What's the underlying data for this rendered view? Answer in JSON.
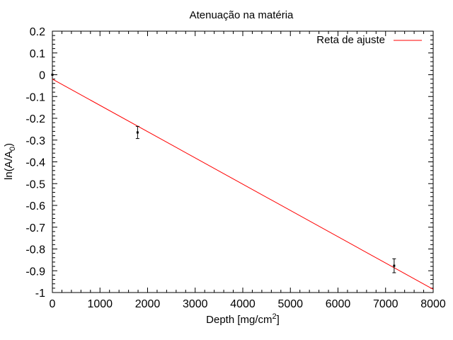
{
  "chart_data": {
    "type": "scatter",
    "title": "Atenuação na matéria",
    "xlabel": "Depth [mg/cm",
    "xlabel_sup": "2",
    "xlabel_end": "]",
    "ylabel": "ln(A/A",
    "ylabel_sub": "0",
    "ylabel_end": ")",
    "xlim": [
      0,
      8000
    ],
    "ylim": [
      -1,
      0.2
    ],
    "x_ticks": [
      0,
      1000,
      2000,
      3000,
      4000,
      5000,
      6000,
      7000,
      8000
    ],
    "x_tick_labels": [
      "0",
      "1000",
      "2000",
      "3000",
      "4000",
      "5000",
      "6000",
      "7000",
      "8000"
    ],
    "y_ticks": [
      -1,
      -0.9,
      -0.8,
      -0.7,
      -0.6,
      -0.5,
      -0.4,
      -0.3,
      -0.2,
      -0.1,
      0,
      0.1,
      0.2
    ],
    "y_tick_labels": [
      "-1",
      "-0.9",
      "-0.8",
      "-0.7",
      "-0.6",
      "-0.5",
      "-0.4",
      "-0.3",
      "-0.2",
      "-0.1",
      "0",
      "0.1",
      "0.2"
    ],
    "grid": false,
    "points": [
      {
        "x": 0,
        "y": 0.0,
        "err": 0.0
      },
      {
        "x": 1790,
        "y": -0.265,
        "err": 0.028
      },
      {
        "x": 7180,
        "y": -0.877,
        "err": 0.032
      }
    ],
    "fit_line": {
      "name": "Reta de ajuste",
      "color": "#ff0000",
      "x": [
        0,
        8000
      ],
      "y": [
        -0.02,
        -0.985
      ]
    },
    "legend_position": "top-right",
    "point_color": "#000000"
  }
}
